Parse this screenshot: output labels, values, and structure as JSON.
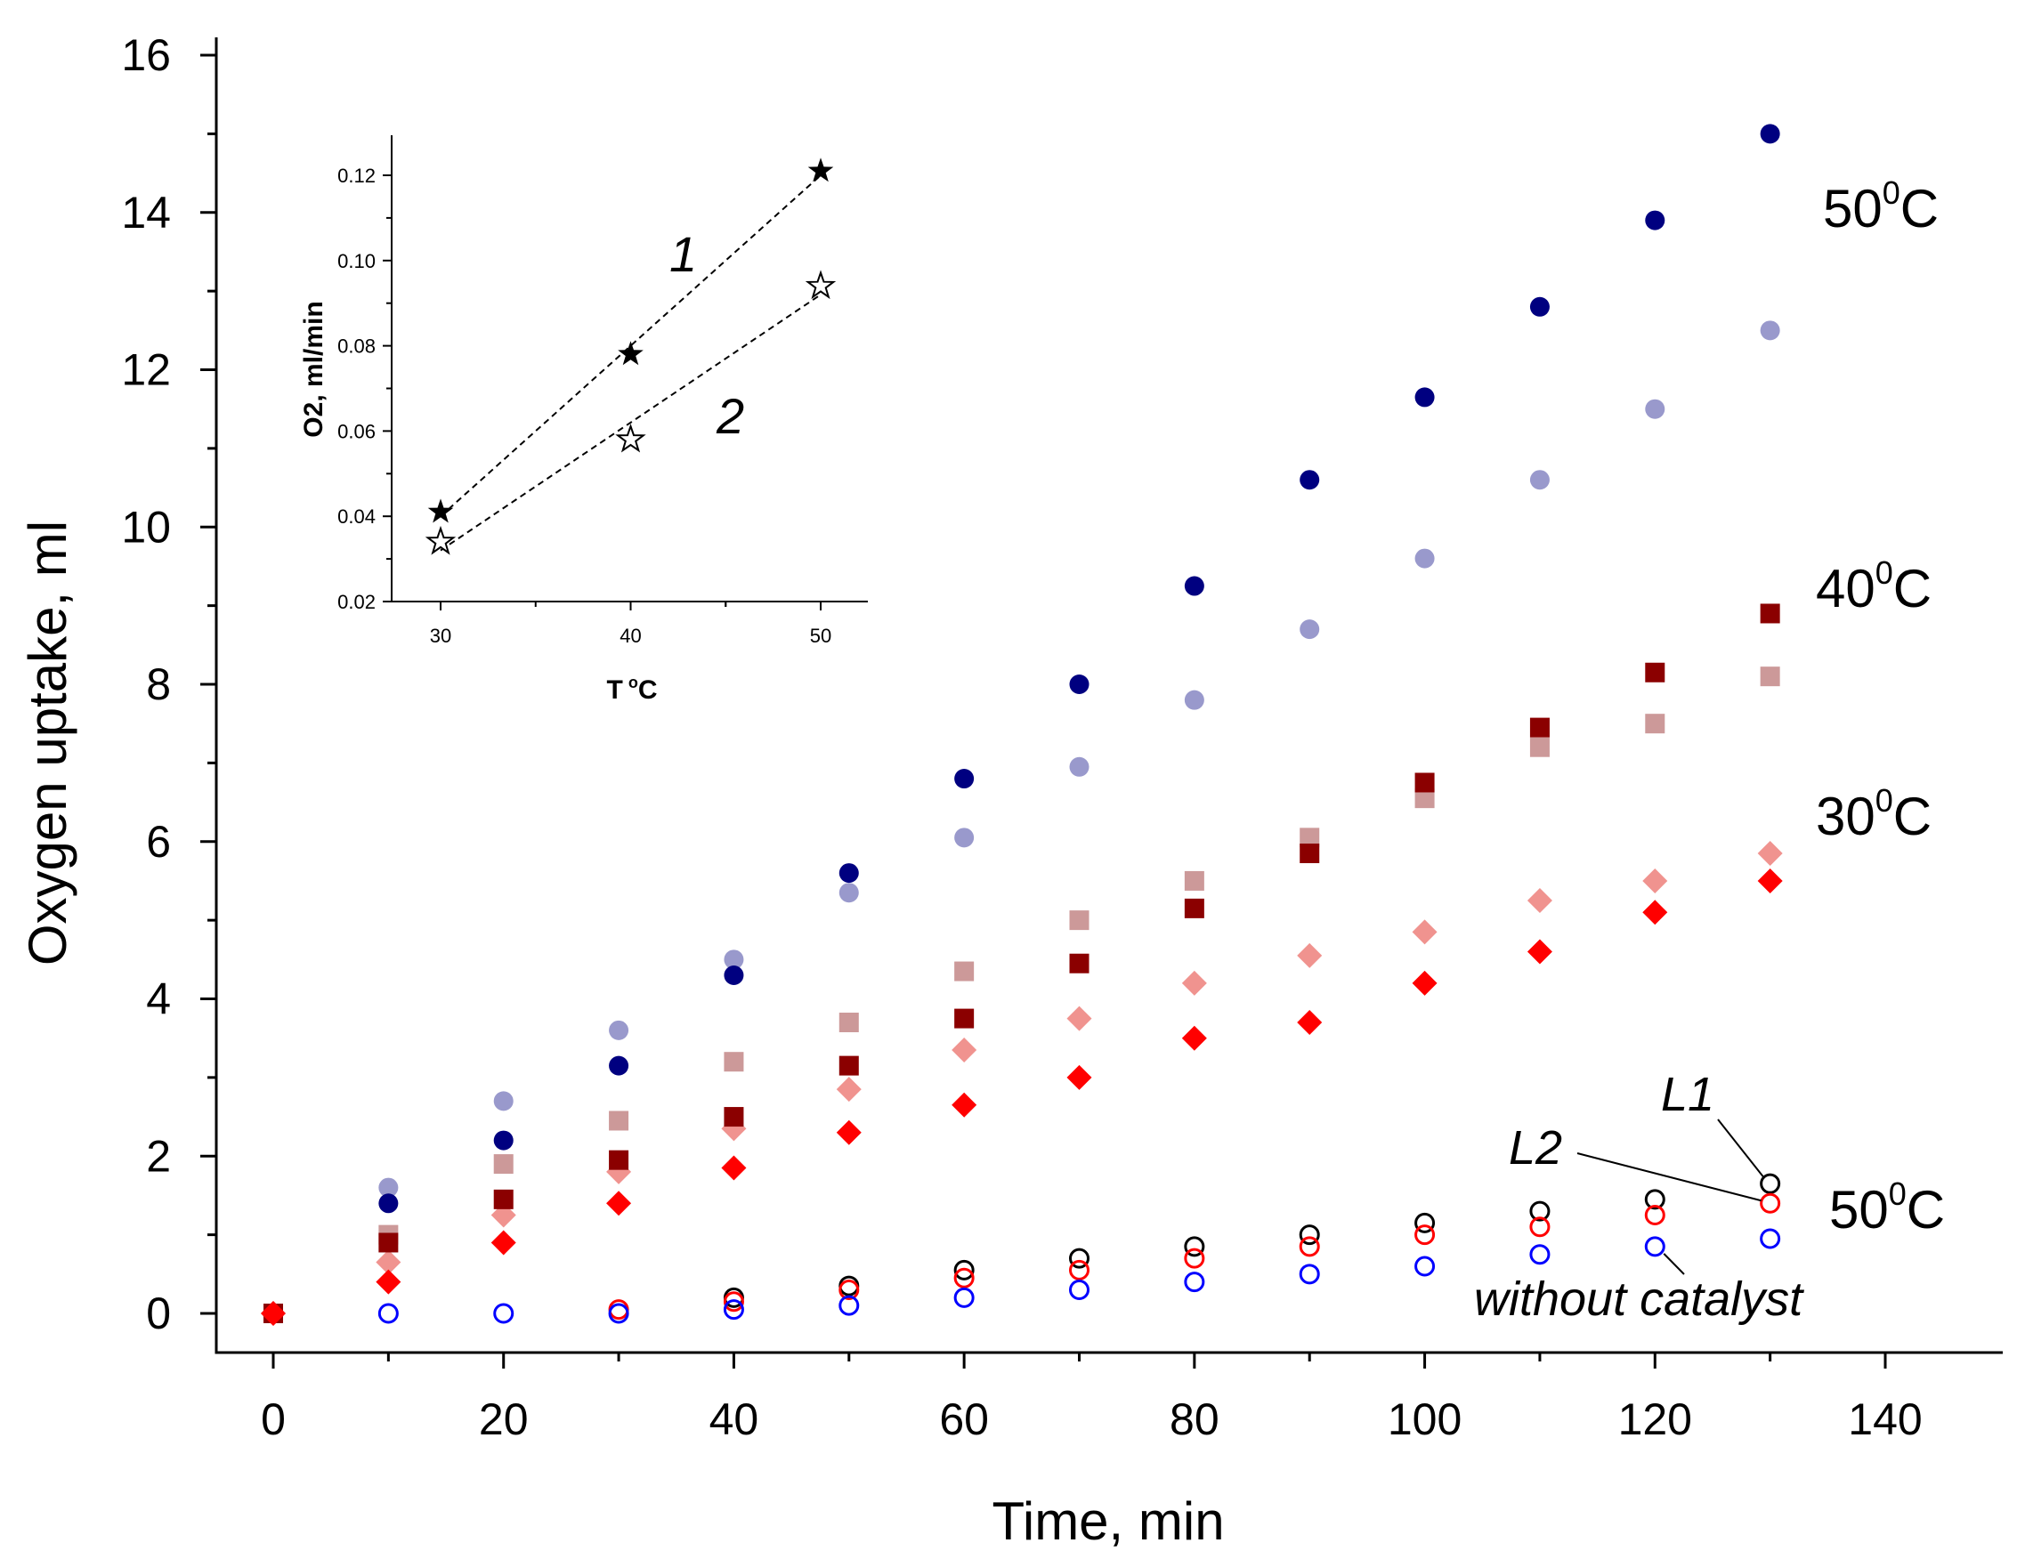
{
  "chart_data": [
    {
      "type": "scatter",
      "xlabel": "Time, min",
      "ylabel": "Oxygen uptake, ml",
      "xlim": [
        -6,
        152
      ],
      "ylim": [
        -0.5,
        16.2
      ],
      "xticks": [
        "0",
        "20",
        "40",
        "60",
        "80",
        "100",
        "120",
        "140"
      ],
      "yticks": [
        "0",
        "2",
        "4",
        "6",
        "8",
        "10",
        "12",
        "14",
        "16"
      ],
      "grid": false,
      "annotations": {
        "t50_label": "50",
        "t40_label": "40",
        "t30_label": "30",
        "t50_bottom_label": "50",
        "deg_sup": "0",
        "unit_c": "C",
        "l1": "L1",
        "l2": "L2",
        "without_catalyst": "without catalyst"
      },
      "series": [
        {
          "marker": "circle-filled",
          "color": "#000080",
          "x": [
            0,
            10,
            20,
            30,
            40,
            50,
            60,
            70,
            80,
            90,
            100,
            110,
            120,
            130
          ],
          "y": [
            0,
            1.4,
            2.2,
            3.15,
            4.3,
            5.6,
            6.8,
            8.0,
            9.25,
            10.6,
            11.65,
            12.8,
            13.9,
            15.0
          ]
        },
        {
          "marker": "circle-filled",
          "color": "#9999cc",
          "x": [
            0,
            10,
            20,
            30,
            40,
            50,
            60,
            70,
            80,
            90,
            100,
            110,
            120,
            130
          ],
          "y": [
            0,
            1.6,
            2.7,
            3.6,
            4.5,
            5.35,
            6.05,
            6.95,
            7.8,
            8.7,
            9.6,
            10.6,
            11.5,
            12.5
          ]
        },
        {
          "marker": "square-filled",
          "color": "#8b0000",
          "x": [
            0,
            10,
            20,
            30,
            40,
            50,
            60,
            70,
            80,
            90,
            100,
            110,
            120,
            130
          ],
          "y": [
            0,
            0.9,
            1.45,
            1.95,
            2.5,
            3.15,
            3.75,
            4.45,
            5.15,
            5.85,
            6.75,
            7.45,
            8.15,
            8.9
          ]
        },
        {
          "marker": "square-filled",
          "color": "#cc9999",
          "x": [
            0,
            10,
            20,
            30,
            40,
            50,
            60,
            70,
            80,
            90,
            100,
            110,
            120,
            130
          ],
          "y": [
            0,
            1.0,
            1.9,
            2.45,
            3.2,
            3.7,
            4.35,
            5.0,
            5.5,
            6.05,
            6.55,
            7.2,
            7.5,
            8.1
          ]
        },
        {
          "marker": "diamond-filled",
          "color": "#f0938f",
          "x": [
            0,
            10,
            20,
            30,
            40,
            50,
            60,
            70,
            80,
            90,
            100,
            110,
            120,
            130
          ],
          "y": [
            0,
            0.65,
            1.25,
            1.8,
            2.35,
            2.85,
            3.35,
            3.75,
            4.2,
            4.55,
            4.85,
            5.25,
            5.5,
            5.85
          ]
        },
        {
          "marker": "diamond-filled",
          "color": "#ff0000",
          "x": [
            0,
            10,
            20,
            30,
            40,
            50,
            60,
            70,
            80,
            90,
            100,
            110,
            120,
            130
          ],
          "y": [
            0,
            0.4,
            0.9,
            1.4,
            1.85,
            2.3,
            2.65,
            3.0,
            3.5,
            3.7,
            4.2,
            4.6,
            5.1,
            5.5
          ]
        },
        {
          "name": "L1",
          "marker": "circle-open",
          "color": "#000000",
          "x": [
            0,
            40,
            50,
            60,
            70,
            80,
            90,
            100,
            110,
            120,
            130
          ],
          "y": [
            0,
            0.2,
            0.35,
            0.55,
            0.7,
            0.85,
            1.0,
            1.15,
            1.3,
            1.45,
            1.65
          ]
        },
        {
          "name": "L2",
          "marker": "circle-open",
          "color": "#ff0000",
          "x": [
            0,
            30,
            40,
            50,
            60,
            70,
            80,
            90,
            100,
            110,
            120,
            130
          ],
          "y": [
            0,
            0.05,
            0.15,
            0.3,
            0.45,
            0.55,
            0.7,
            0.85,
            1.0,
            1.1,
            1.25,
            1.4
          ]
        },
        {
          "name": "without catalyst",
          "marker": "circle-open",
          "color": "#0000ff",
          "x": [
            10,
            20,
            30,
            40,
            50,
            60,
            70,
            80,
            90,
            100,
            110,
            120,
            130
          ],
          "y": [
            0,
            0,
            0,
            0.05,
            0.1,
            0.2,
            0.3,
            0.4,
            0.5,
            0.6,
            0.75,
            0.85,
            0.95
          ]
        }
      ]
    },
    {
      "type": "scatter",
      "xlabel_main": "T",
      "xlabel_sup": "o",
      "xlabel_unit": "C",
      "ylabel": "O2, ml/min",
      "xlim": [
        27.5,
        52.5
      ],
      "ylim": [
        0.02,
        0.128
      ],
      "xticks": [
        "30",
        "40",
        "50"
      ],
      "yticks": [
        "0.02",
        "0.04",
        "0.06",
        "0.08",
        "0.10",
        "0.12"
      ],
      "series": [
        {
          "name": "1",
          "marker": "star-filled",
          "color": "#000000",
          "x": [
            30,
            40,
            50
          ],
          "y": [
            0.041,
            0.078,
            0.121
          ]
        },
        {
          "name": "2",
          "marker": "star-open",
          "color": "#000000",
          "x": [
            30,
            40,
            50
          ],
          "y": [
            0.034,
            0.058,
            0.094
          ]
        }
      ]
    }
  ]
}
